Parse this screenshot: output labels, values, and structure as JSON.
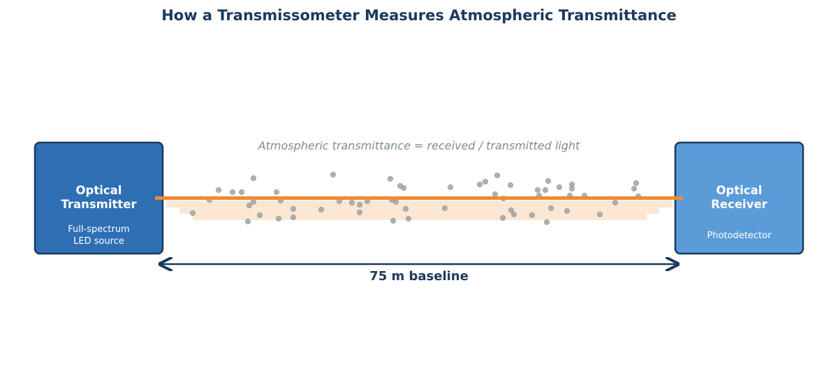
{
  "title": "How a Transmissometer Measures Atmospheric Transmittance",
  "transmitter": {
    "title_lines": [
      "Optical",
      "Transmitter"
    ],
    "subtitle_lines": [
      "Full-spectrum",
      "LED source"
    ]
  },
  "receiver": {
    "title_lines": [
      "Optical",
      "Receiver"
    ],
    "subtitle_lines": [
      "Photodetector"
    ]
  },
  "caption": "Atmospheric transmittance = received / transmitted light",
  "baseline_label": "75 m baseline",
  "colors": {
    "title": "#1b3a5c",
    "transmitter_fill": "#2e6fb4",
    "receiver_fill": "#5b9bd8",
    "box_border": "#1b3a5c",
    "beam": "#f08a33",
    "beam_glow": "#fbe3cc",
    "particle": "#9ea5a5",
    "caption": "#7f8c8d",
    "arrow": "#1b3a5c"
  }
}
